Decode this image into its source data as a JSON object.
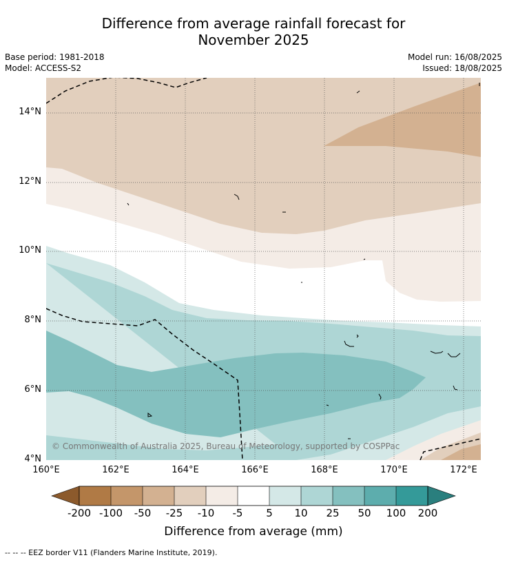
{
  "header": {
    "title_line1": "Difference from average rainfall forecast for",
    "title_line2": "November 2025",
    "base_period": "Base period: 1981-2018",
    "model": "Model: ACCESS-S2",
    "model_run": "Model run: 16/08/2025",
    "issued": "Issued: 18/08/2025"
  },
  "map": {
    "lat_labels": [
      "14°N",
      "12°N",
      "10°N",
      "8°N",
      "6°N",
      "4°N"
    ],
    "lon_labels": [
      "160°E",
      "162°E",
      "164°E",
      "166°E",
      "168°E",
      "170°E",
      "172°E"
    ],
    "copyright": "© Commonwealth of Australia 2025, Bureau of Meteorology, supported by COSPPac"
  },
  "colorbar": {
    "ticks": [
      "-200",
      "-100",
      "-50",
      "-25",
      "-10",
      "-5",
      "5",
      "10",
      "25",
      "50",
      "100",
      "200"
    ],
    "colors": [
      "#8c5a2c",
      "#b07a45",
      "#c4966a",
      "#d3b191",
      "#e2cfbd",
      "#f4ece6",
      "#ffffff",
      "#d4e8e7",
      "#aed6d5",
      "#84c0bf",
      "#5dadad",
      "#349a99",
      "#2a7f7e"
    ],
    "title": "Difference from average (mm)"
  },
  "legend": {
    "footnote": "--  --  -- EEZ border V11 (Flanders Marine Institute, 2019)."
  }
}
